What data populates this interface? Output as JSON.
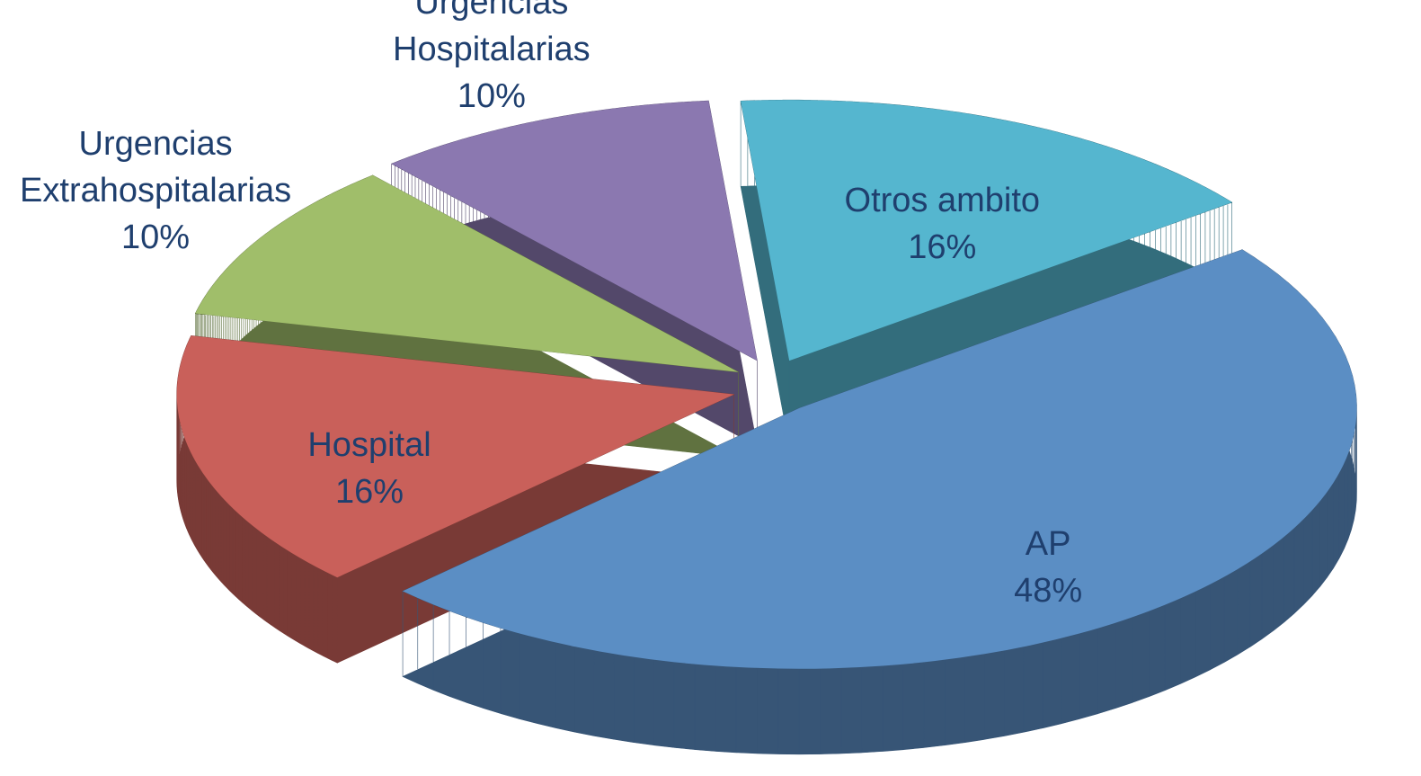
{
  "chart_data": {
    "type": "pie3d",
    "categories": [
      "Otros ambito",
      "AP",
      "Hospital",
      "Urgencias Extrahospitalarias",
      "Urgencias Hospitalarias"
    ],
    "values": [
      16,
      48,
      16,
      10,
      10
    ],
    "value_labels": [
      "16%",
      "48%",
      "16%",
      "10%",
      "10%"
    ],
    "colors": [
      "#55b6cf",
      "#5b8ec4",
      "#c9605a",
      "#a0be6a",
      "#8b78b0"
    ]
  }
}
